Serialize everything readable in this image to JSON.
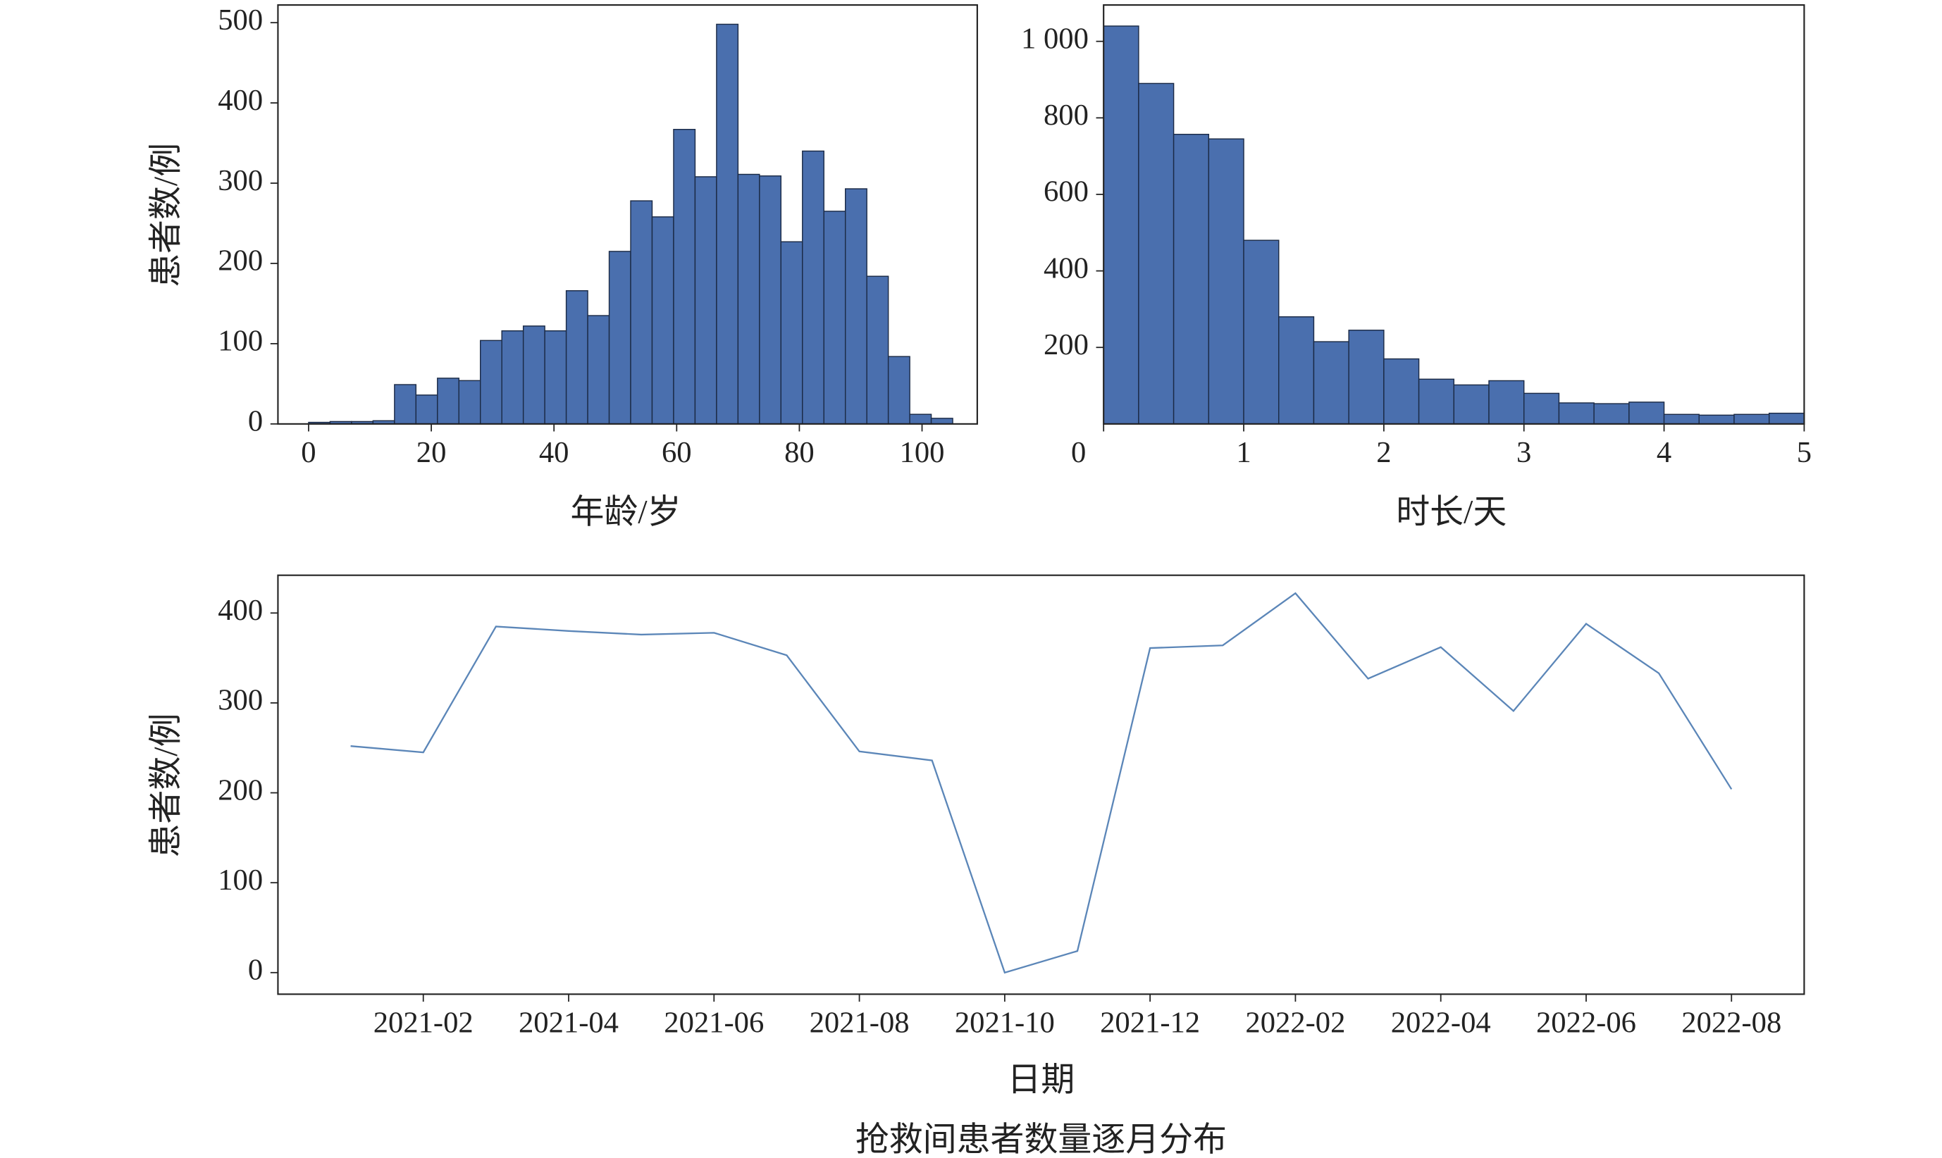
{
  "chart_data": [
    {
      "type": "histogram",
      "xlabel": "年龄/岁",
      "ylabel": "患者数/例",
      "color": "#4a6fae",
      "bins": [
        0,
        3.5,
        7,
        10.5,
        14,
        17.5,
        21,
        24.5,
        28,
        31.5,
        35,
        38.5,
        42,
        45.5,
        49,
        52.5,
        56,
        59.5,
        63,
        66.5,
        70,
        73.5,
        77,
        80.5,
        84,
        87.5,
        91,
        94.5,
        98,
        101.5,
        105
      ],
      "values": [
        2,
        3,
        3,
        4,
        49,
        36,
        57,
        54,
        104,
        116,
        122,
        116,
        166,
        135,
        215,
        278,
        258,
        367,
        308,
        498,
        311,
        309,
        227,
        340,
        265,
        293,
        184,
        84,
        12,
        7
      ],
      "xlim": [
        -5,
        109
      ],
      "ylim": [
        0,
        522
      ],
      "xticks": [
        0,
        20,
        40,
        60,
        80,
        100
      ],
      "yticks": [
        0,
        100,
        200,
        300,
        400,
        500
      ]
    },
    {
      "type": "histogram",
      "xlabel": "时长/天",
      "color": "#4a6fae",
      "bins": [
        0,
        0.25,
        0.5,
        0.75,
        1,
        1.25,
        1.5,
        1.75,
        2,
        2.25,
        2.5,
        2.75,
        3,
        3.25,
        3.5,
        3.75,
        4,
        4.25,
        4.5,
        4.75,
        5
      ],
      "values": [
        1040,
        890,
        757,
        745,
        480,
        280,
        215,
        245,
        170,
        117,
        102,
        113,
        80,
        55,
        53,
        57,
        25,
        23,
        25,
        28
      ],
      "xlim": [
        0,
        5
      ],
      "ylim": [
        0,
        1095
      ],
      "xticks": [
        0,
        1,
        2,
        3,
        4,
        5
      ],
      "yticks": [
        200,
        400,
        600,
        800,
        {
          "value": 1000,
          "label": "1 000"
        }
      ]
    },
    {
      "type": "line",
      "xlabel": "日期",
      "ylabel": "患者数/例",
      "color": "#5b86b8",
      "x": [
        "2021-01",
        "2021-02",
        "2021-03",
        "2021-04",
        "2021-05",
        "2021-06",
        "2021-07",
        "2021-08",
        "2021-09",
        "2021-10",
        "2021-11",
        "2021-12",
        "2022-01",
        "2022-02",
        "2022-03",
        "2022-04",
        "2022-05",
        "2022-06",
        "2022-07",
        "2022-08"
      ],
      "values": [
        252,
        245,
        385,
        380,
        376,
        378,
        353,
        246,
        236,
        0,
        24,
        361,
        364,
        422,
        327,
        362,
        291,
        388,
        333,
        204
      ],
      "xlim": [
        "2020-12",
        "2022-09"
      ],
      "ylim": [
        -24,
        442
      ],
      "xticks": [
        "2021-02",
        "2021-04",
        "2021-06",
        "2021-08",
        "2021-10",
        "2021-12",
        "2022-02",
        "2022-04",
        "2022-06",
        "2022-08"
      ],
      "yticks": [
        0,
        100,
        200,
        300,
        400
      ]
    }
  ],
  "caption": "抢救间患者数量逐月分布"
}
